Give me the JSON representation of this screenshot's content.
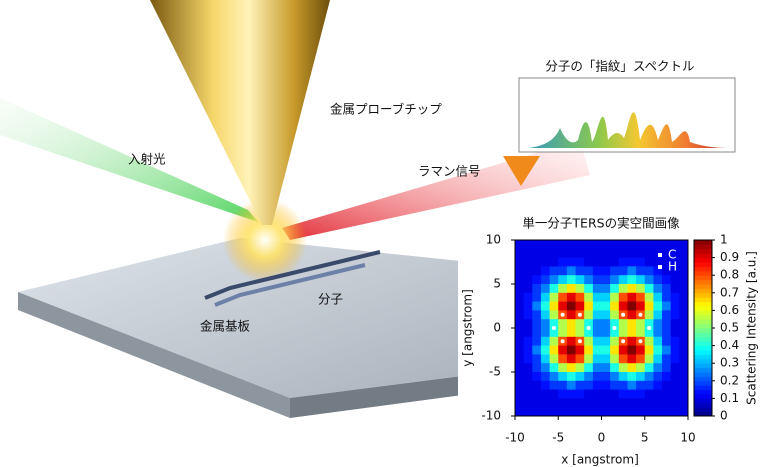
{
  "illustration": {
    "tip": "金属プローブチップ",
    "incident": "入射光",
    "raman": "ラマン信号",
    "molecule": "分子",
    "substrate": "金属基板",
    "spectrum_title": "分子の「指紋」スペクトル"
  },
  "chart_data": {
    "type": "heatmap",
    "title": "単一分子TERSの実空間画像",
    "x_label": "x [angstrom]",
    "y_label": "y [angstrom]",
    "colorbar_label": "Scattering Intensity [a.u.]",
    "xlim": [
      -10,
      10
    ],
    "ylim": [
      -10,
      10
    ],
    "xticks": [
      -10,
      -5,
      0,
      5,
      10
    ],
    "yticks": [
      -10,
      -5,
      0,
      5,
      10
    ],
    "clim": [
      0,
      1
    ],
    "cticks": [
      0,
      0.1,
      0.2,
      0.3,
      0.4,
      0.5,
      0.6,
      0.7,
      0.8,
      0.9,
      1
    ],
    "legend": [
      {
        "name": "C",
        "color": "#ffffff"
      },
      {
        "name": "H",
        "color": "#ffffff"
      }
    ],
    "z": [
      [
        0.1,
        0.1,
        0.1,
        0.1,
        0.1,
        0.1,
        0.1,
        0.1,
        0.1,
        0.1,
        0.1,
        0.1,
        0.1,
        0.1,
        0.1,
        0.1,
        0.1,
        0.1,
        0.1,
        0.1
      ],
      [
        0.1,
        0.1,
        0.1,
        0.1,
        0.1,
        0.1,
        0.1,
        0.1,
        0.1,
        0.1,
        0.1,
        0.1,
        0.1,
        0.1,
        0.1,
        0.1,
        0.1,
        0.1,
        0.1,
        0.1
      ],
      [
        0.1,
        0.1,
        0.1,
        0.1,
        0.1,
        0.14,
        0.14,
        0.14,
        0.1,
        0.1,
        0.1,
        0.1,
        0.14,
        0.14,
        0.14,
        0.1,
        0.1,
        0.1,
        0.1,
        0.1
      ],
      [
        0.1,
        0.1,
        0.1,
        0.14,
        0.18,
        0.18,
        0.25,
        0.18,
        0.18,
        0.14,
        0.14,
        0.18,
        0.18,
        0.25,
        0.18,
        0.18,
        0.14,
        0.1,
        0.1,
        0.1
      ],
      [
        0.1,
        0.1,
        0.14,
        0.18,
        0.25,
        0.33,
        0.4,
        0.33,
        0.25,
        0.18,
        0.18,
        0.25,
        0.33,
        0.4,
        0.33,
        0.25,
        0.18,
        0.14,
        0.1,
        0.1
      ],
      [
        0.1,
        0.1,
        0.18,
        0.25,
        0.4,
        0.55,
        0.65,
        0.55,
        0.4,
        0.25,
        0.25,
        0.4,
        0.55,
        0.65,
        0.55,
        0.4,
        0.25,
        0.18,
        0.1,
        0.1
      ],
      [
        0.1,
        0.14,
        0.18,
        0.33,
        0.55,
        0.8,
        0.9,
        0.8,
        0.55,
        0.33,
        0.33,
        0.55,
        0.8,
        0.9,
        0.8,
        0.55,
        0.33,
        0.18,
        0.14,
        0.1
      ],
      [
        0.1,
        0.14,
        0.25,
        0.4,
        0.65,
        0.9,
        1.0,
        0.9,
        0.65,
        0.4,
        0.4,
        0.65,
        0.9,
        1.0,
        0.9,
        0.65,
        0.4,
        0.25,
        0.14,
        0.1
      ],
      [
        0.1,
        0.14,
        0.18,
        0.33,
        0.55,
        0.8,
        0.9,
        0.8,
        0.55,
        0.33,
        0.33,
        0.55,
        0.8,
        0.9,
        0.8,
        0.55,
        0.33,
        0.18,
        0.14,
        0.1
      ],
      [
        0.1,
        0.1,
        0.18,
        0.25,
        0.4,
        0.55,
        0.65,
        0.55,
        0.4,
        0.25,
        0.25,
        0.4,
        0.55,
        0.65,
        0.55,
        0.4,
        0.25,
        0.18,
        0.1,
        0.1
      ],
      [
        0.1,
        0.1,
        0.18,
        0.25,
        0.4,
        0.55,
        0.65,
        0.55,
        0.4,
        0.25,
        0.25,
        0.4,
        0.55,
        0.65,
        0.55,
        0.4,
        0.25,
        0.18,
        0.1,
        0.1
      ],
      [
        0.1,
        0.14,
        0.18,
        0.33,
        0.55,
        0.8,
        0.9,
        0.8,
        0.55,
        0.33,
        0.33,
        0.55,
        0.8,
        0.9,
        0.8,
        0.55,
        0.33,
        0.18,
        0.14,
        0.1
      ],
      [
        0.1,
        0.14,
        0.25,
        0.4,
        0.65,
        0.9,
        1.0,
        0.9,
        0.65,
        0.4,
        0.4,
        0.65,
        0.9,
        1.0,
        0.9,
        0.65,
        0.4,
        0.25,
        0.14,
        0.1
      ],
      [
        0.1,
        0.14,
        0.18,
        0.33,
        0.55,
        0.8,
        0.9,
        0.8,
        0.55,
        0.33,
        0.33,
        0.55,
        0.8,
        0.9,
        0.8,
        0.55,
        0.33,
        0.18,
        0.14,
        0.1
      ],
      [
        0.1,
        0.1,
        0.18,
        0.25,
        0.4,
        0.55,
        0.65,
        0.55,
        0.4,
        0.25,
        0.25,
        0.4,
        0.55,
        0.65,
        0.55,
        0.4,
        0.25,
        0.18,
        0.1,
        0.1
      ],
      [
        0.1,
        0.1,
        0.14,
        0.18,
        0.25,
        0.33,
        0.4,
        0.33,
        0.25,
        0.18,
        0.18,
        0.25,
        0.33,
        0.4,
        0.33,
        0.25,
        0.18,
        0.14,
        0.1,
        0.1
      ],
      [
        0.1,
        0.1,
        0.1,
        0.14,
        0.18,
        0.18,
        0.25,
        0.18,
        0.18,
        0.14,
        0.14,
        0.18,
        0.18,
        0.25,
        0.18,
        0.18,
        0.14,
        0.1,
        0.1,
        0.1
      ],
      [
        0.1,
        0.1,
        0.1,
        0.1,
        0.1,
        0.14,
        0.14,
        0.14,
        0.1,
        0.1,
        0.1,
        0.1,
        0.14,
        0.14,
        0.14,
        0.1,
        0.1,
        0.1,
        0.1,
        0.1
      ],
      [
        0.1,
        0.1,
        0.1,
        0.1,
        0.1,
        0.1,
        0.1,
        0.1,
        0.1,
        0.1,
        0.1,
        0.1,
        0.1,
        0.1,
        0.1,
        0.1,
        0.1,
        0.1,
        0.1,
        0.1
      ],
      [
        0.1,
        0.1,
        0.1,
        0.1,
        0.1,
        0.1,
        0.1,
        0.1,
        0.1,
        0.1,
        0.1,
        0.1,
        0.1,
        0.1,
        0.1,
        0.1,
        0.1,
        0.1,
        0.1,
        0.1
      ]
    ]
  }
}
